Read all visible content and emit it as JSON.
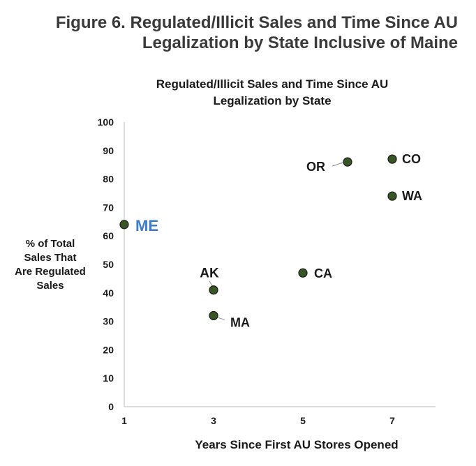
{
  "figure": {
    "title_line1": "Figure 6. Regulated/Illicit Sales and Time Since AU",
    "title_line2": "Legalization by State Inclusive of Maine"
  },
  "chart_data": {
    "type": "scatter",
    "title_line1": "Regulated/Illicit Sales and Time Since AU",
    "title_line2": "Legalization by State",
    "xlabel": "Years Since First AU Stores Opened",
    "ylabel_lines": [
      "% of Total",
      "Sales That",
      "Are Regulated",
      "Sales"
    ],
    "xlim": [
      1,
      8
    ],
    "ylim": [
      0,
      100
    ],
    "x_ticks": [
      1,
      3,
      5,
      7
    ],
    "y_ticks": [
      0,
      10,
      20,
      30,
      40,
      50,
      60,
      70,
      80,
      90,
      100
    ],
    "grid": false,
    "marker_color": "#375623",
    "highlight_color": "#3d7cc9",
    "points": [
      {
        "label": "ME",
        "x": 1,
        "y": 64,
        "highlight": true
      },
      {
        "label": "AK",
        "x": 3,
        "y": 41
      },
      {
        "label": "MA",
        "x": 3,
        "y": 32
      },
      {
        "label": "CA",
        "x": 5,
        "y": 47
      },
      {
        "label": "OR",
        "x": 6,
        "y": 86
      },
      {
        "label": "CO",
        "x": 7,
        "y": 87
      },
      {
        "label": "WA",
        "x": 7,
        "y": 74
      }
    ]
  }
}
